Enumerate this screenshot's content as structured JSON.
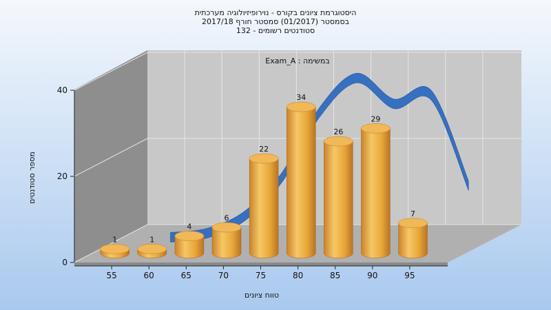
{
  "chart_data": {
    "type": "bar",
    "title_lines": [
      "היסטוגרמת ציונים בקורס - נוירופיזיולוגיה מערכתית",
      "בסמסטר  (01/2017)  סמסטר חורף 2017/18",
      "סטודנטים רשומים - 132"
    ],
    "series_label": "Exam_A : במשימה",
    "xlabel": "טווח ציונים",
    "ylabel": "מספר סטודנטים",
    "x_ticks": [
      "55",
      "60",
      "65",
      "70",
      "75",
      "80",
      "85",
      "90",
      "95"
    ],
    "y_ticks": [
      "0",
      "20",
      "40"
    ],
    "ylim": [
      0,
      40
    ],
    "bars": [
      {
        "x": 52.5,
        "value": 1,
        "label": "1"
      },
      {
        "x": 57.5,
        "value": 1,
        "label": "1"
      },
      {
        "x": 62.5,
        "value": 4,
        "label": "4"
      },
      {
        "x": 67.5,
        "value": 6,
        "label": "6"
      },
      {
        "x": 72.5,
        "value": 22,
        "label": "22"
      },
      {
        "x": 77.5,
        "value": 34,
        "label": "34"
      },
      {
        "x": 82.5,
        "value": 26,
        "label": "26"
      },
      {
        "x": 87.5,
        "value": 29,
        "label": "29"
      },
      {
        "x": 92.5,
        "value": 7,
        "label": "7"
      }
    ],
    "curve": [
      {
        "x": 57.5,
        "y": 1
      },
      {
        "x": 62.5,
        "y": 2
      },
      {
        "x": 67.5,
        "y": 6
      },
      {
        "x": 72.5,
        "y": 15
      },
      {
        "x": 77.5,
        "y": 30
      },
      {
        "x": 82.5,
        "y": 38
      },
      {
        "x": 87.5,
        "y": 32
      },
      {
        "x": 92.5,
        "y": 34
      },
      {
        "x": 97.5,
        "y": 13
      }
    ],
    "grid": true,
    "colors": {
      "bar": "#e8a83a",
      "curve": "#2f6cc0",
      "back_wall": "#c8c8c8",
      "side_wall": "#8e8e8e",
      "floor": "#b0b0b0",
      "background_top": "#f4f8fd",
      "background_bottom": "#a9c9ee"
    }
  }
}
